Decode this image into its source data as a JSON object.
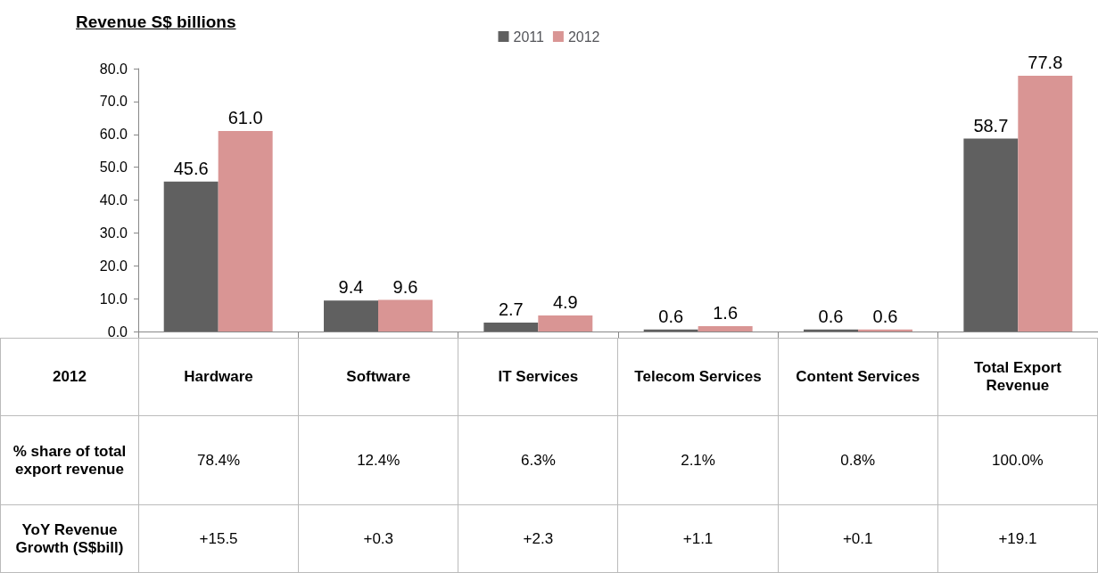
{
  "chart_data": {
    "type": "bar",
    "title": "Revenue S$ billions",
    "categories": [
      "Hardware",
      "Software",
      "IT Services",
      "Telecom Services",
      "Content Services",
      "Total Export Revenue"
    ],
    "series": [
      {
        "name": "2011",
        "color": "#606060",
        "values": [
          45.6,
          9.4,
          2.7,
          0.6,
          0.6,
          58.7
        ],
        "value_labels": [
          "45.6",
          "9.4",
          "2.7",
          "0.6",
          "0.6",
          "58.7"
        ]
      },
      {
        "name": "2012",
        "color": "#d99594",
        "values": [
          61.0,
          9.6,
          4.9,
          1.6,
          0.6,
          77.8
        ],
        "value_labels": [
          "61.0",
          "9.6",
          "4.9",
          "1.6",
          "0.6",
          "77.8"
        ]
      }
    ],
    "ylim": [
      0,
      80
    ],
    "yticks": [
      {
        "value": 0,
        "label": "0.0"
      },
      {
        "value": 10,
        "label": "10.0"
      },
      {
        "value": 20,
        "label": "20.0"
      },
      {
        "value": 30,
        "label": "30.0"
      },
      {
        "value": 40,
        "label": "40.0"
      },
      {
        "value": 50,
        "label": "50.0"
      },
      {
        "value": 60,
        "label": "60.0"
      },
      {
        "value": 70,
        "label": "70.0"
      },
      {
        "value": 80,
        "label": "80.0"
      }
    ],
    "grid": false,
    "legend": "top",
    "annotations": [
      "2012",
      "% share of total export revenue",
      "78.4%",
      "12.4%",
      "6.3%",
      "2.1%",
      "0.8%",
      "100.0%",
      "YoY Revenue Growth (S$bill)",
      "+15.5",
      "+0.3",
      "+2.3",
      "+1.1",
      "+0.1",
      "+19.1"
    ]
  }
}
